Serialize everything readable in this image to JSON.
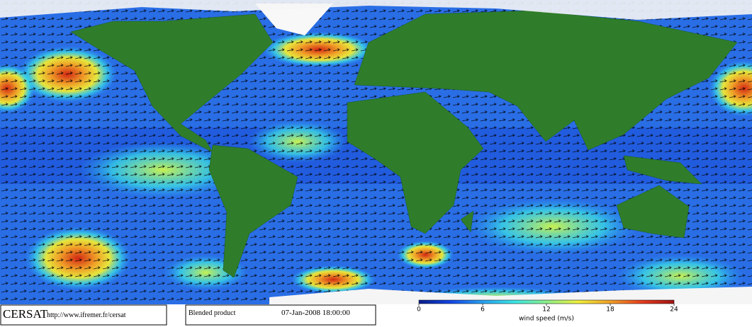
{
  "footer": {
    "logo": "CERSAT",
    "url": "http://www.ifremer.fr/cersat",
    "product": "Blended product",
    "date": "07-Jan-2008 18:00:00"
  },
  "colorbar": {
    "min": 0,
    "max": 24,
    "ticks": [
      0,
      6,
      12,
      18,
      24
    ],
    "label": "wind speed (m/s)",
    "colors": [
      "#0a1e8c",
      "#1446e6",
      "#28a0f0",
      "#3ce6e6",
      "#8cf08c",
      "#f0f03c",
      "#f0a028",
      "#e63c1e",
      "#a01414"
    ]
  }
}
